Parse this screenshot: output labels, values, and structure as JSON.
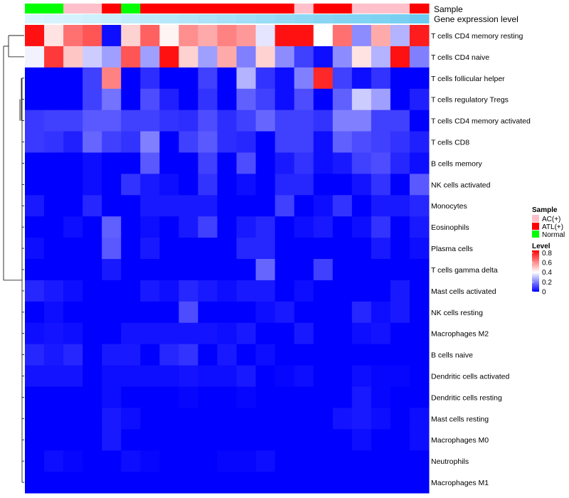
{
  "chart_data": {
    "type": "heatmap",
    "title": "",
    "annotation_tracks": [
      "Sample",
      "Gene expression level"
    ],
    "samples": [
      "AC(+)",
      "ATL(+)",
      "Normal"
    ],
    "sample_colors": {
      "AC(+)": "#FFC0CB",
      "ATL(+)": "#FF0000",
      "Normal": "#00FF00"
    },
    "sample_row": [
      "Normal",
      "Normal",
      "AC(+)",
      "AC(+)",
      "ATL(+)",
      "Normal",
      "ATL(+)",
      "ATL(+)",
      "ATL(+)",
      "ATL(+)",
      "ATL(+)",
      "ATL(+)",
      "ATL(+)",
      "ATL(+)",
      "AC(+)",
      "ATL(+)",
      "ATL(+)",
      "AC(+)",
      "AC(+)",
      "AC(+)",
      "ATL(+)"
    ],
    "expression_row": [
      0.05,
      0.08,
      0.1,
      0.15,
      0.2,
      0.25,
      0.3,
      0.35,
      0.4,
      0.45,
      0.5,
      0.55,
      0.6,
      0.65,
      0.7,
      0.75,
      0.8,
      0.82,
      0.85,
      0.9,
      1.0
    ],
    "expression_color_low": "#E0F7FF",
    "expression_color_high": "#6CCBF0",
    "legend": {
      "sample_title": "Sample",
      "sample_labels": [
        "AC(+)",
        "ATL(+)",
        "Normal"
      ],
      "level_title": "Level",
      "level_ticks": [
        "0.8",
        "0.6",
        "0.4",
        "0.2",
        "0"
      ],
      "level_tick_values": [
        0.8,
        0.6,
        0.4,
        0.2,
        0
      ],
      "level_range": [
        0,
        0.85
      ]
    },
    "colorscale": {
      "low": "#0000FF",
      "mid": "#FFFFFF",
      "high": "#FF0000",
      "midpoint": 0.4
    },
    "rows": [
      "T cells CD4 memory resting",
      "T cells CD4 naive",
      "T cells follicular helper",
      "T cells regulatory  Tregs",
      "T cells CD4 memory activated",
      "T cells CD8",
      "B cells memory",
      "NK cells activated",
      "Monocytes",
      "Eosinophils",
      "Plasma cells",
      "T cells gamma delta",
      "Mast cells activated",
      "NK cells resting",
      "Macrophages M2",
      "B cells naive",
      "Dendritic cells activated",
      "Dendritic cells resting",
      "Mast cells resting",
      "Macrophages M0",
      "Neutrophils",
      "Macrophages M1"
    ],
    "values": [
      [
        0.82,
        0.45,
        0.65,
        0.7,
        0.02,
        0.48,
        0.68,
        0.42,
        0.6,
        0.55,
        0.62,
        0.58,
        0.36,
        0.82,
        0.82,
        0.4,
        0.65,
        0.22,
        0.55,
        0.28,
        0.8
      ],
      [
        0.38,
        0.75,
        0.5,
        0.32,
        0.25,
        0.7,
        0.25,
        0.82,
        0.48,
        0.25,
        0.55,
        0.2,
        0.48,
        0.22,
        0.1,
        0.02,
        0.22,
        0.45,
        0.28,
        0.82,
        0.2
      ],
      [
        0.0,
        0.0,
        0.0,
        0.1,
        0.62,
        0.0,
        0.07,
        0.0,
        0.0,
        0.1,
        0.0,
        0.28,
        0.08,
        0.02,
        0.2,
        0.78,
        0.1,
        0.02,
        0.08,
        0.0,
        0.0
      ],
      [
        0.0,
        0.0,
        0.0,
        0.1,
        0.18,
        0.0,
        0.12,
        0.05,
        0.0,
        0.08,
        0.0,
        0.15,
        0.1,
        0.02,
        0.12,
        0.0,
        0.15,
        0.32,
        0.25,
        0.0,
        0.05
      ],
      [
        0.09,
        0.1,
        0.1,
        0.14,
        0.14,
        0.1,
        0.1,
        0.08,
        0.07,
        0.12,
        0.07,
        0.1,
        0.16,
        0.1,
        0.1,
        0.08,
        0.2,
        0.2,
        0.1,
        0.1,
        0.0
      ],
      [
        0.09,
        0.08,
        0.05,
        0.16,
        0.1,
        0.08,
        0.2,
        0.0,
        0.1,
        0.14,
        0.07,
        0.06,
        0.0,
        0.1,
        0.1,
        0.02,
        0.15,
        0.12,
        0.1,
        0.08,
        0.05
      ],
      [
        0.0,
        0.0,
        0.0,
        0.02,
        0.0,
        0.0,
        0.14,
        0.0,
        0.0,
        0.1,
        0.0,
        0.12,
        0.0,
        0.04,
        0.08,
        0.02,
        0.04,
        0.1,
        0.12,
        0.06,
        0.02
      ],
      [
        0.0,
        0.0,
        0.0,
        0.02,
        0.0,
        0.08,
        0.04,
        0.02,
        0.0,
        0.08,
        0.0,
        0.02,
        0.0,
        0.06,
        0.06,
        0.0,
        0.0,
        0.03,
        0.08,
        0.0,
        0.14
      ],
      [
        0.04,
        0.0,
        0.0,
        0.06,
        0.0,
        0.0,
        0.04,
        0.04,
        0.04,
        0.04,
        0.0,
        0.0,
        0.0,
        0.1,
        0.0,
        0.02,
        0.08,
        0.0,
        0.04,
        0.04,
        0.06
      ],
      [
        0.0,
        0.0,
        0.02,
        0.0,
        0.15,
        0.0,
        0.02,
        0.0,
        0.04,
        0.1,
        0.0,
        0.04,
        0.06,
        0.0,
        0.02,
        0.04,
        0.0,
        0.02,
        0.08,
        0.0,
        0.04
      ],
      [
        0.02,
        0.0,
        0.0,
        0.0,
        0.14,
        0.0,
        0.04,
        0.0,
        0.0,
        0.0,
        0.0,
        0.06,
        0.06,
        0.0,
        0.0,
        0.0,
        0.0,
        0.0,
        0.04,
        0.0,
        0.02
      ],
      [
        0.0,
        0.0,
        0.0,
        0.0,
        0.04,
        0.0,
        0.0,
        0.0,
        0.0,
        0.0,
        0.0,
        0.0,
        0.16,
        0.0,
        0.0,
        0.1,
        0.0,
        0.0,
        0.0,
        0.0,
        0.0
      ],
      [
        0.06,
        0.04,
        0.02,
        0.0,
        0.0,
        0.0,
        0.04,
        0.02,
        0.06,
        0.04,
        0.02,
        0.04,
        0.04,
        0.0,
        0.02,
        0.0,
        0.0,
        0.0,
        0.0,
        0.04,
        0.0
      ],
      [
        0.0,
        0.02,
        0.0,
        0.0,
        0.0,
        0.0,
        0.0,
        0.0,
        0.12,
        0.0,
        0.0,
        0.0,
        0.02,
        0.04,
        0.0,
        0.0,
        0.0,
        0.06,
        0.02,
        0.04,
        0.0
      ],
      [
        0.02,
        0.03,
        0.02,
        0.0,
        0.0,
        0.03,
        0.03,
        0.03,
        0.03,
        0.03,
        0.02,
        0.04,
        0.0,
        0.0,
        0.04,
        0.0,
        0.0,
        0.02,
        0.03,
        0.0,
        0.0
      ],
      [
        0.06,
        0.04,
        0.06,
        0.0,
        0.04,
        0.04,
        0.0,
        0.06,
        0.08,
        0.0,
        0.04,
        0.0,
        0.02,
        0.0,
        0.0,
        0.0,
        0.0,
        0.0,
        0.0,
        0.0,
        0.0
      ],
      [
        0.03,
        0.03,
        0.03,
        0.0,
        0.02,
        0.02,
        0.02,
        0.02,
        0.03,
        0.02,
        0.02,
        0.04,
        0.0,
        0.01,
        0.02,
        0.0,
        0.0,
        0.02,
        0.01,
        0.01,
        0.0
      ],
      [
        0.0,
        0.0,
        0.0,
        0.0,
        0.02,
        0.0,
        0.0,
        0.0,
        0.01,
        0.0,
        0.0,
        0.01,
        0.0,
        0.0,
        0.0,
        0.0,
        0.0,
        0.04,
        0.01,
        0.0,
        0.0
      ],
      [
        0.0,
        0.0,
        0.0,
        0.0,
        0.04,
        0.02,
        0.0,
        0.0,
        0.0,
        0.0,
        0.0,
        0.0,
        0.0,
        0.0,
        0.0,
        0.0,
        0.03,
        0.04,
        0.02,
        0.0,
        0.02
      ],
      [
        0.0,
        0.0,
        0.0,
        0.0,
        0.04,
        0.0,
        0.0,
        0.0,
        0.0,
        0.0,
        0.0,
        0.0,
        0.0,
        0.0,
        0.0,
        0.0,
        0.0,
        0.02,
        0.0,
        0.0,
        0.02
      ],
      [
        0.0,
        0.02,
        0.01,
        0.0,
        0.0,
        0.02,
        0.01,
        0.0,
        0.0,
        0.0,
        0.01,
        0.01,
        0.02,
        0.0,
        0.0,
        0.0,
        0.0,
        0.0,
        0.0,
        0.0,
        0.0
      ],
      [
        0.0,
        0.0,
        0.0,
        0.0,
        0.0,
        0.0,
        0.0,
        0.0,
        0.0,
        0.0,
        0.0,
        0.0,
        0.0,
        0.0,
        0.0,
        0.0,
        0.0,
        0.0,
        0.0,
        0.0,
        0.0
      ]
    ],
    "row_dendrogram": [
      {
        "i": 0,
        "j": 1,
        "h": 3
      },
      {
        "i": 2,
        "j": 3,
        "h": 0.3
      },
      {
        "i": "c1",
        "j": 4,
        "h": 0.55
      }
    ]
  }
}
